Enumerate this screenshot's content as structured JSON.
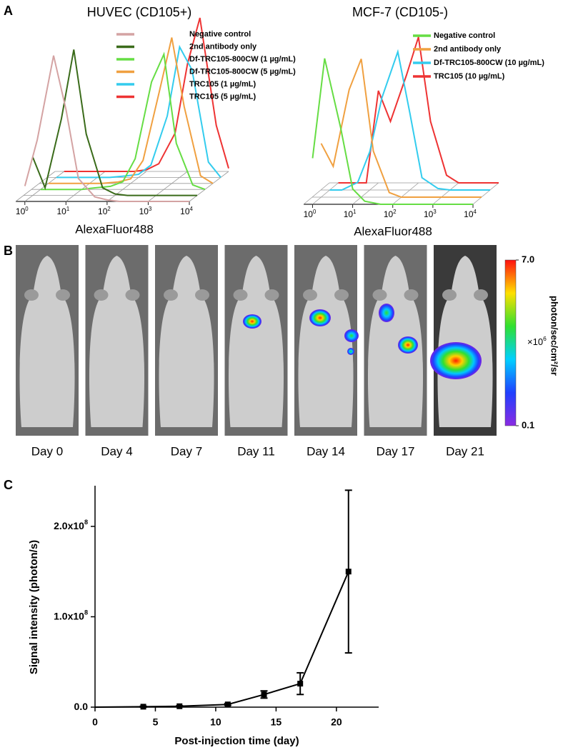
{
  "chart_data": [
    {
      "type": "histogram-3d",
      "panel_label": "A",
      "title": "HUVEC (CD105+)",
      "title_color": "#ee2222",
      "x_label": "AlexaFluor488",
      "log_x": true,
      "xlim": [
        0.6,
        10000
      ],
      "xticks": [
        {
          "value": 1,
          "label": "10",
          "exponent": "0"
        },
        {
          "value": 10,
          "label": "10",
          "exponent": "1"
        },
        {
          "value": 100,
          "label": "10",
          "exponent": "2"
        },
        {
          "value": 1000,
          "label": "10",
          "exponent": "3"
        },
        {
          "value": 10000,
          "label": "10",
          "exponent": "4"
        }
      ],
      "ylim": [
        0,
        100
      ],
      "x": [
        1,
        2,
        5,
        10,
        20,
        50,
        100,
        200,
        500,
        1000,
        2000,
        5000,
        10000
      ],
      "series": [
        {
          "name": "Negative control",
          "color": "#d4a3a3",
          "values": [
            10,
            40,
            95,
            60,
            15,
            3,
            1,
            0,
            0,
            0,
            0,
            0,
            0
          ]
        },
        {
          "name": "2nd antibody only",
          "color": "#3a6b1a",
          "values": [
            25,
            5,
            50,
            95,
            40,
            5,
            1,
            0,
            0,
            0,
            0,
            0,
            0
          ]
        },
        {
          "name": "Df-TRC105-800CW (1 µg/mL)",
          "color": "#66dd44",
          "values": [
            0,
            0,
            0,
            0,
            1,
            2,
            5,
            20,
            70,
            88,
            30,
            3,
            0
          ]
        },
        {
          "name": "Df-TRC105-800CW (5 µg/mL)",
          "color": "#f0a040",
          "values": [
            0,
            0,
            0,
            0,
            0,
            1,
            3,
            15,
            60,
            95,
            50,
            5,
            0
          ]
        },
        {
          "name": "TRC105 (1 µg/mL)",
          "color": "#33ccee",
          "values": [
            0,
            0,
            0,
            0,
            0,
            1,
            2,
            8,
            40,
            85,
            70,
            10,
            0
          ]
        },
        {
          "name": "TRC105 (5 µg/mL)",
          "color": "#ee3333",
          "values": [
            0,
            0,
            0,
            0,
            0,
            0,
            1,
            5,
            25,
            70,
            100,
            30,
            2
          ]
        }
      ]
    },
    {
      "type": "histogram-3d",
      "title": "MCF-7 (CD105-)",
      "title_color": "#ee2222",
      "x_label": "AlexaFluor488",
      "log_x": true,
      "xlim": [
        0.6,
        10000
      ],
      "xticks": [
        {
          "value": 1,
          "label": "10",
          "exponent": "0"
        },
        {
          "value": 10,
          "label": "10",
          "exponent": "1"
        },
        {
          "value": 100,
          "label": "10",
          "exponent": "2"
        },
        {
          "value": 1000,
          "label": "10",
          "exponent": "3"
        },
        {
          "value": 10000,
          "label": "10",
          "exponent": "4"
        }
      ],
      "ylim": [
        0,
        100
      ],
      "x": [
        1,
        2,
        5,
        10,
        20,
        50,
        100,
        200,
        500,
        1000,
        2000,
        5000,
        10000
      ],
      "series": [
        {
          "name": "Negative control",
          "color": "#66dd44",
          "values": [
            30,
            95,
            50,
            10,
            2,
            0,
            0,
            0,
            0,
            0,
            0,
            0,
            0
          ]
        },
        {
          "name": "2nd antibody only",
          "color": "#f0a040",
          "values": [
            35,
            20,
            70,
            90,
            30,
            3,
            0,
            0,
            0,
            0,
            0,
            0,
            0
          ]
        },
        {
          "name": "Df-TRC105-800CW (10 µg/mL)",
          "color": "#33ccee",
          "values": [
            0,
            0,
            5,
            25,
            60,
            90,
            50,
            8,
            1,
            0,
            0,
            0,
            0
          ]
        },
        {
          "name": "TRC105 (10 µg/mL)",
          "color": "#ee3333",
          "values": [
            0,
            0,
            0,
            60,
            40,
            70,
            95,
            40,
            5,
            0,
            0,
            0,
            0
          ]
        }
      ]
    },
    {
      "type": "image-strip",
      "panel_label": "B",
      "categories": [
        "Day 0",
        "Day 4",
        "Day 7",
        "Day 11",
        "Day 14",
        "Day 17",
        "Day 21"
      ],
      "colorbar": {
        "label": "photon/sec/cm²/sr",
        "scale_label": "×10",
        "scale_exponent": "6",
        "clim": [
          0.1,
          7
        ],
        "ticks": [
          {
            "value": 7,
            "label": "7.0"
          },
          0.1
        ]
      }
    },
    {
      "type": "line",
      "panel_label": "C",
      "x_label": "Post-injection time (day)",
      "y_label": "Signal intensity (photon/s)",
      "color": "#000000",
      "x": [
        0,
        4,
        7,
        11,
        14,
        17,
        21
      ],
      "values": [
        0,
        500000,
        1000000,
        3000000,
        14000000,
        26000000,
        150000000
      ],
      "errors": [
        0,
        500000,
        500000,
        1000000,
        4000000,
        12000000,
        90000000
      ],
      "xlim": [
        0,
        23.5
      ],
      "ylim": [
        0,
        245000000
      ],
      "xticks": [
        0,
        5,
        10,
        15,
        20
      ],
      "yticks": [
        {
          "value": 0,
          "label": "0.0"
        },
        {
          "value": 100000000,
          "label": "1.0x10",
          "exponent": "8"
        },
        {
          "value": 200000000,
          "label": "2.0x10",
          "exponent": "8"
        }
      ]
    }
  ]
}
